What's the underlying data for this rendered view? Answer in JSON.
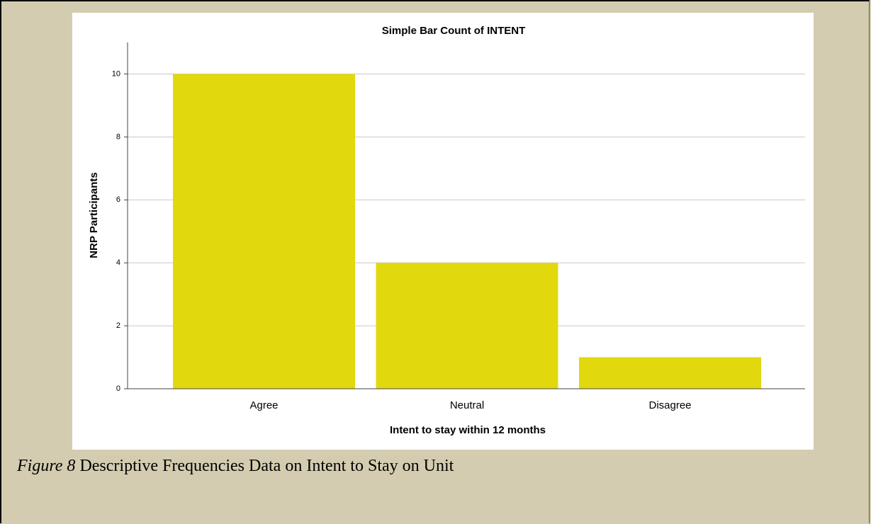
{
  "chart_data": {
    "type": "bar",
    "title": "Simple Bar Count of INTENT",
    "x_label": "Intent to stay within 12 months",
    "y_label": "NRP Participants",
    "categories": [
      "Agree",
      "Neutral",
      "Disagree"
    ],
    "values": [
      10,
      4,
      1
    ],
    "color": "#e2d80e",
    "ylim": [
      0,
      11
    ],
    "yticks": [
      0,
      2,
      4,
      6,
      8,
      10
    ],
    "grid": true
  },
  "caption": {
    "label": "Figure 8",
    "text": "Descriptive Frequencies Data on Intent to Stay on Unit"
  }
}
